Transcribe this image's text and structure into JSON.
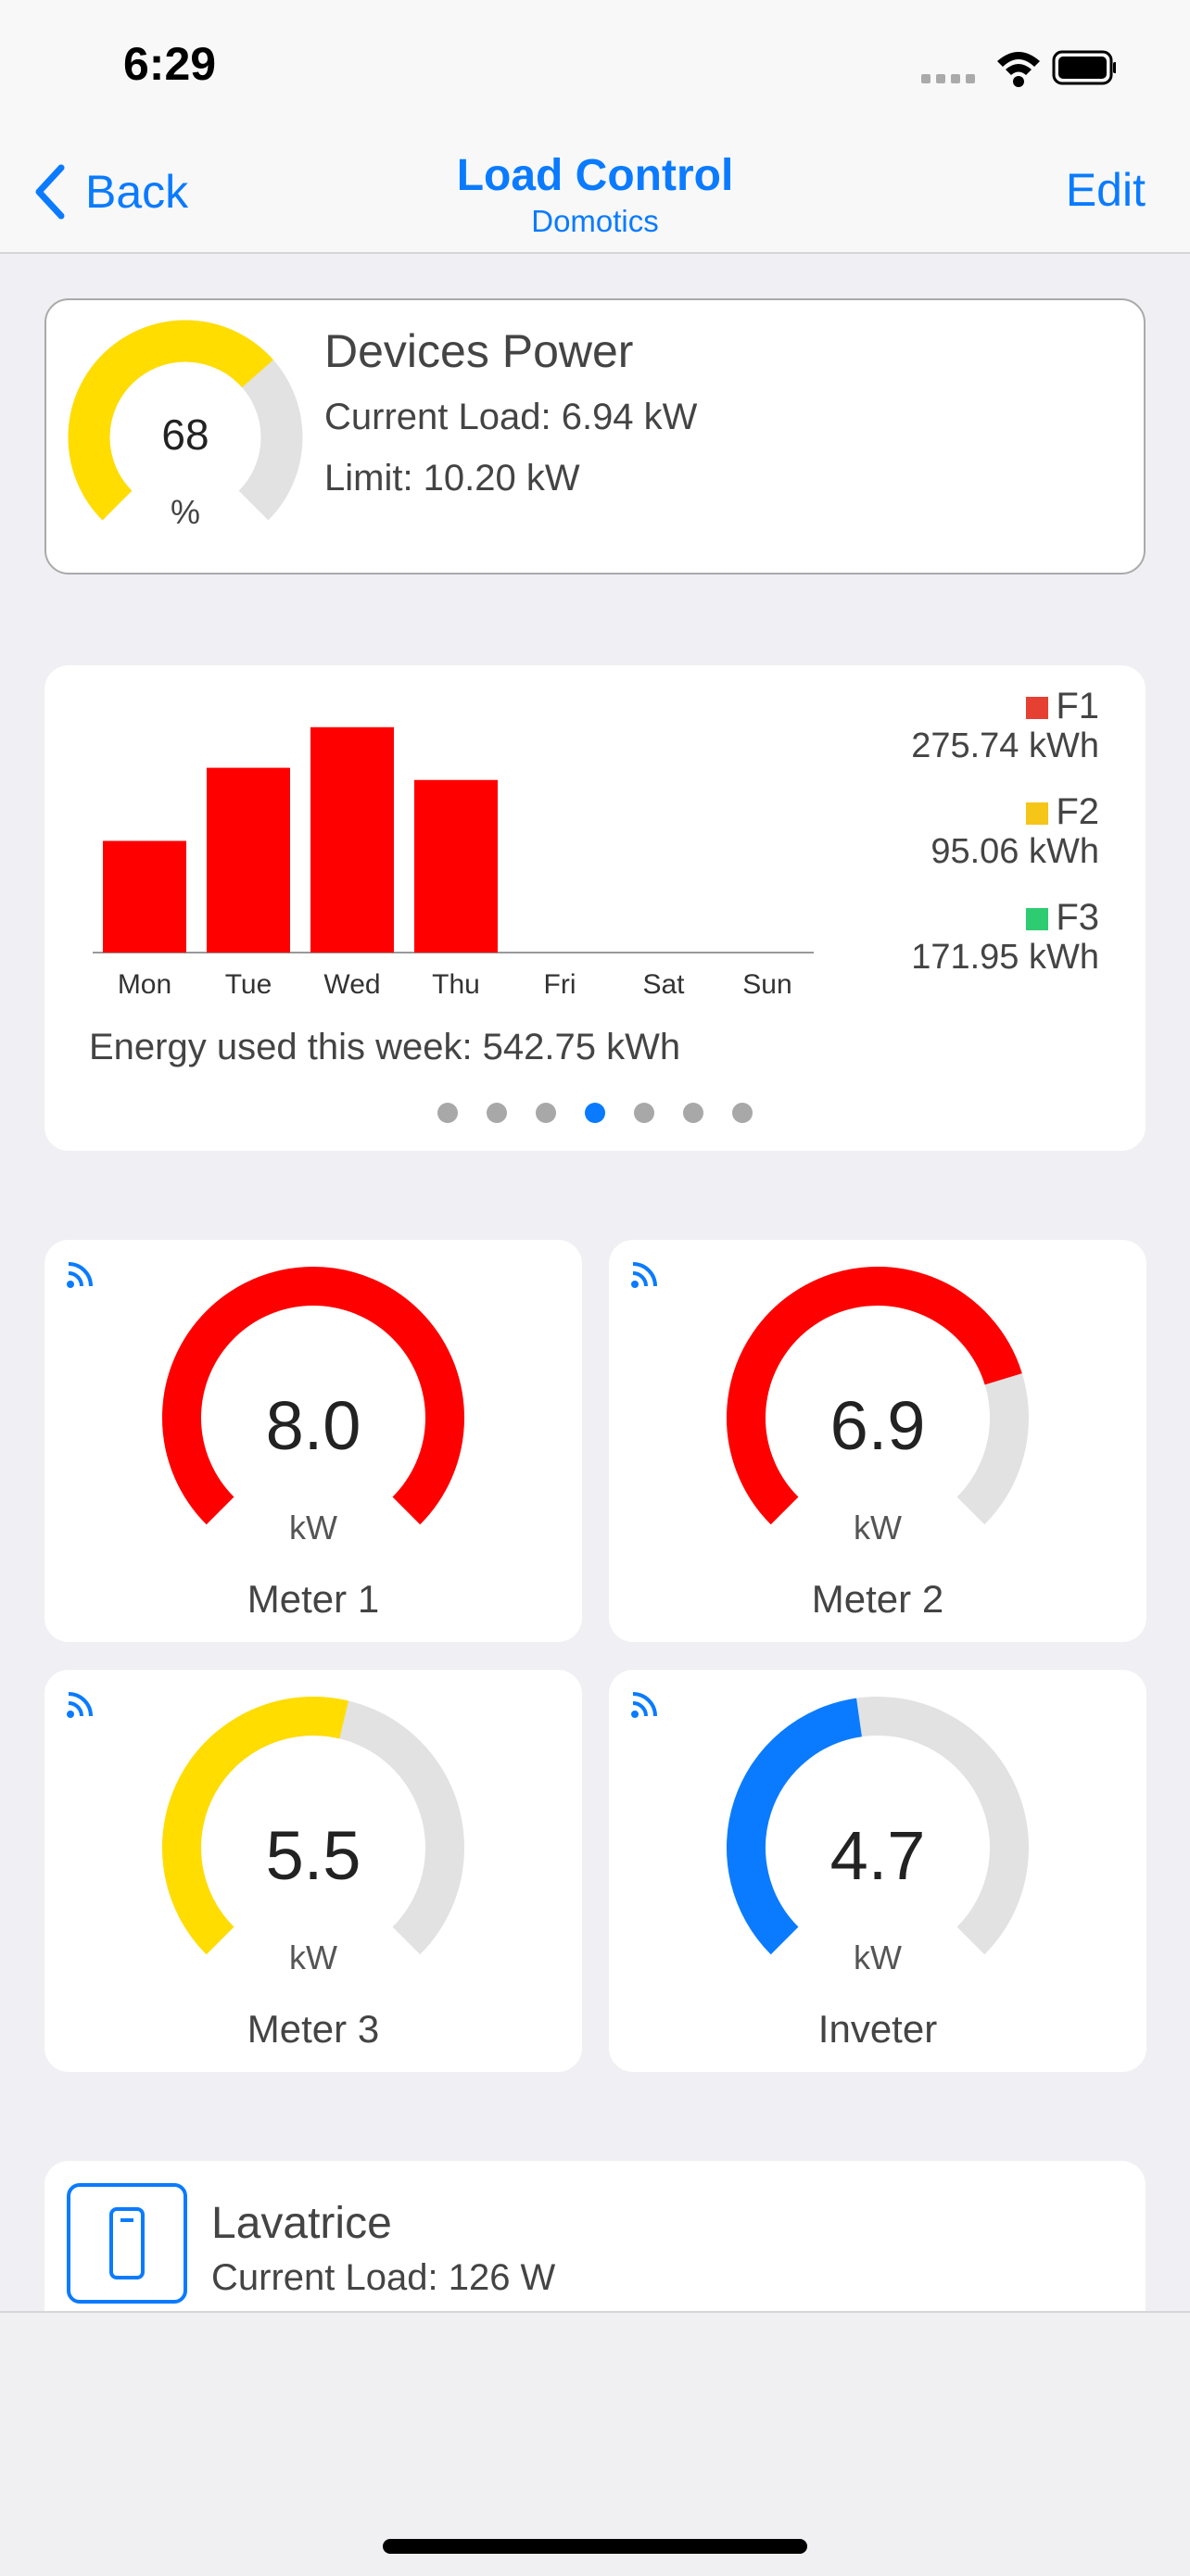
{
  "status": {
    "time": "6:29"
  },
  "nav": {
    "back_label": "Back",
    "title": "Load Control",
    "subtitle": "Domotics",
    "edit_label": "Edit"
  },
  "power": {
    "title": "Devices Power",
    "current_load": "Current Load: 6.94 kW",
    "limit": "Limit: 10.20 kW",
    "gauge_value": "68",
    "gauge_unit": "%",
    "gauge_fraction": 0.68,
    "gauge_color": "#ffdd00"
  },
  "chart_data": {
    "type": "bar",
    "categories": [
      "Mon",
      "Tue",
      "Wed",
      "Thu",
      "Fri",
      "Sat",
      "Sun"
    ],
    "values": [
      110,
      182,
      222,
      170,
      0,
      0,
      0
    ],
    "ylim": [
      0,
      230
    ],
    "bar_color": "#ff0000",
    "legend": [
      {
        "name": "F1",
        "value": "275.74 kWh",
        "color": "#e64032"
      },
      {
        "name": "F2",
        "value": "95.06 kWh",
        "color": "#f5c518"
      },
      {
        "name": "F3",
        "value": "171.95 kWh",
        "color": "#2ecc71"
      }
    ]
  },
  "energy_text": "Energy used this week: 542.75 kWh",
  "pager": {
    "count": 7,
    "active": 3
  },
  "meters": [
    {
      "value": "8.0",
      "unit": "kW",
      "label": "Meter 1",
      "fraction": 1.0,
      "color": "#ff0000"
    },
    {
      "value": "6.9",
      "unit": "kW",
      "label": "Meter 2",
      "fraction": 0.77,
      "color": "#ff0000"
    },
    {
      "value": "5.5",
      "unit": "kW",
      "label": "Meter 3",
      "fraction": 0.55,
      "color": "#ffdd00"
    },
    {
      "value": "4.7",
      "unit": "kW",
      "label": "Inveter",
      "fraction": 0.47,
      "color": "#0a7bff"
    }
  ],
  "device": {
    "name": "Lavatrice",
    "current_load": "Current Load: 126 W",
    "icon": "switch-icon"
  }
}
